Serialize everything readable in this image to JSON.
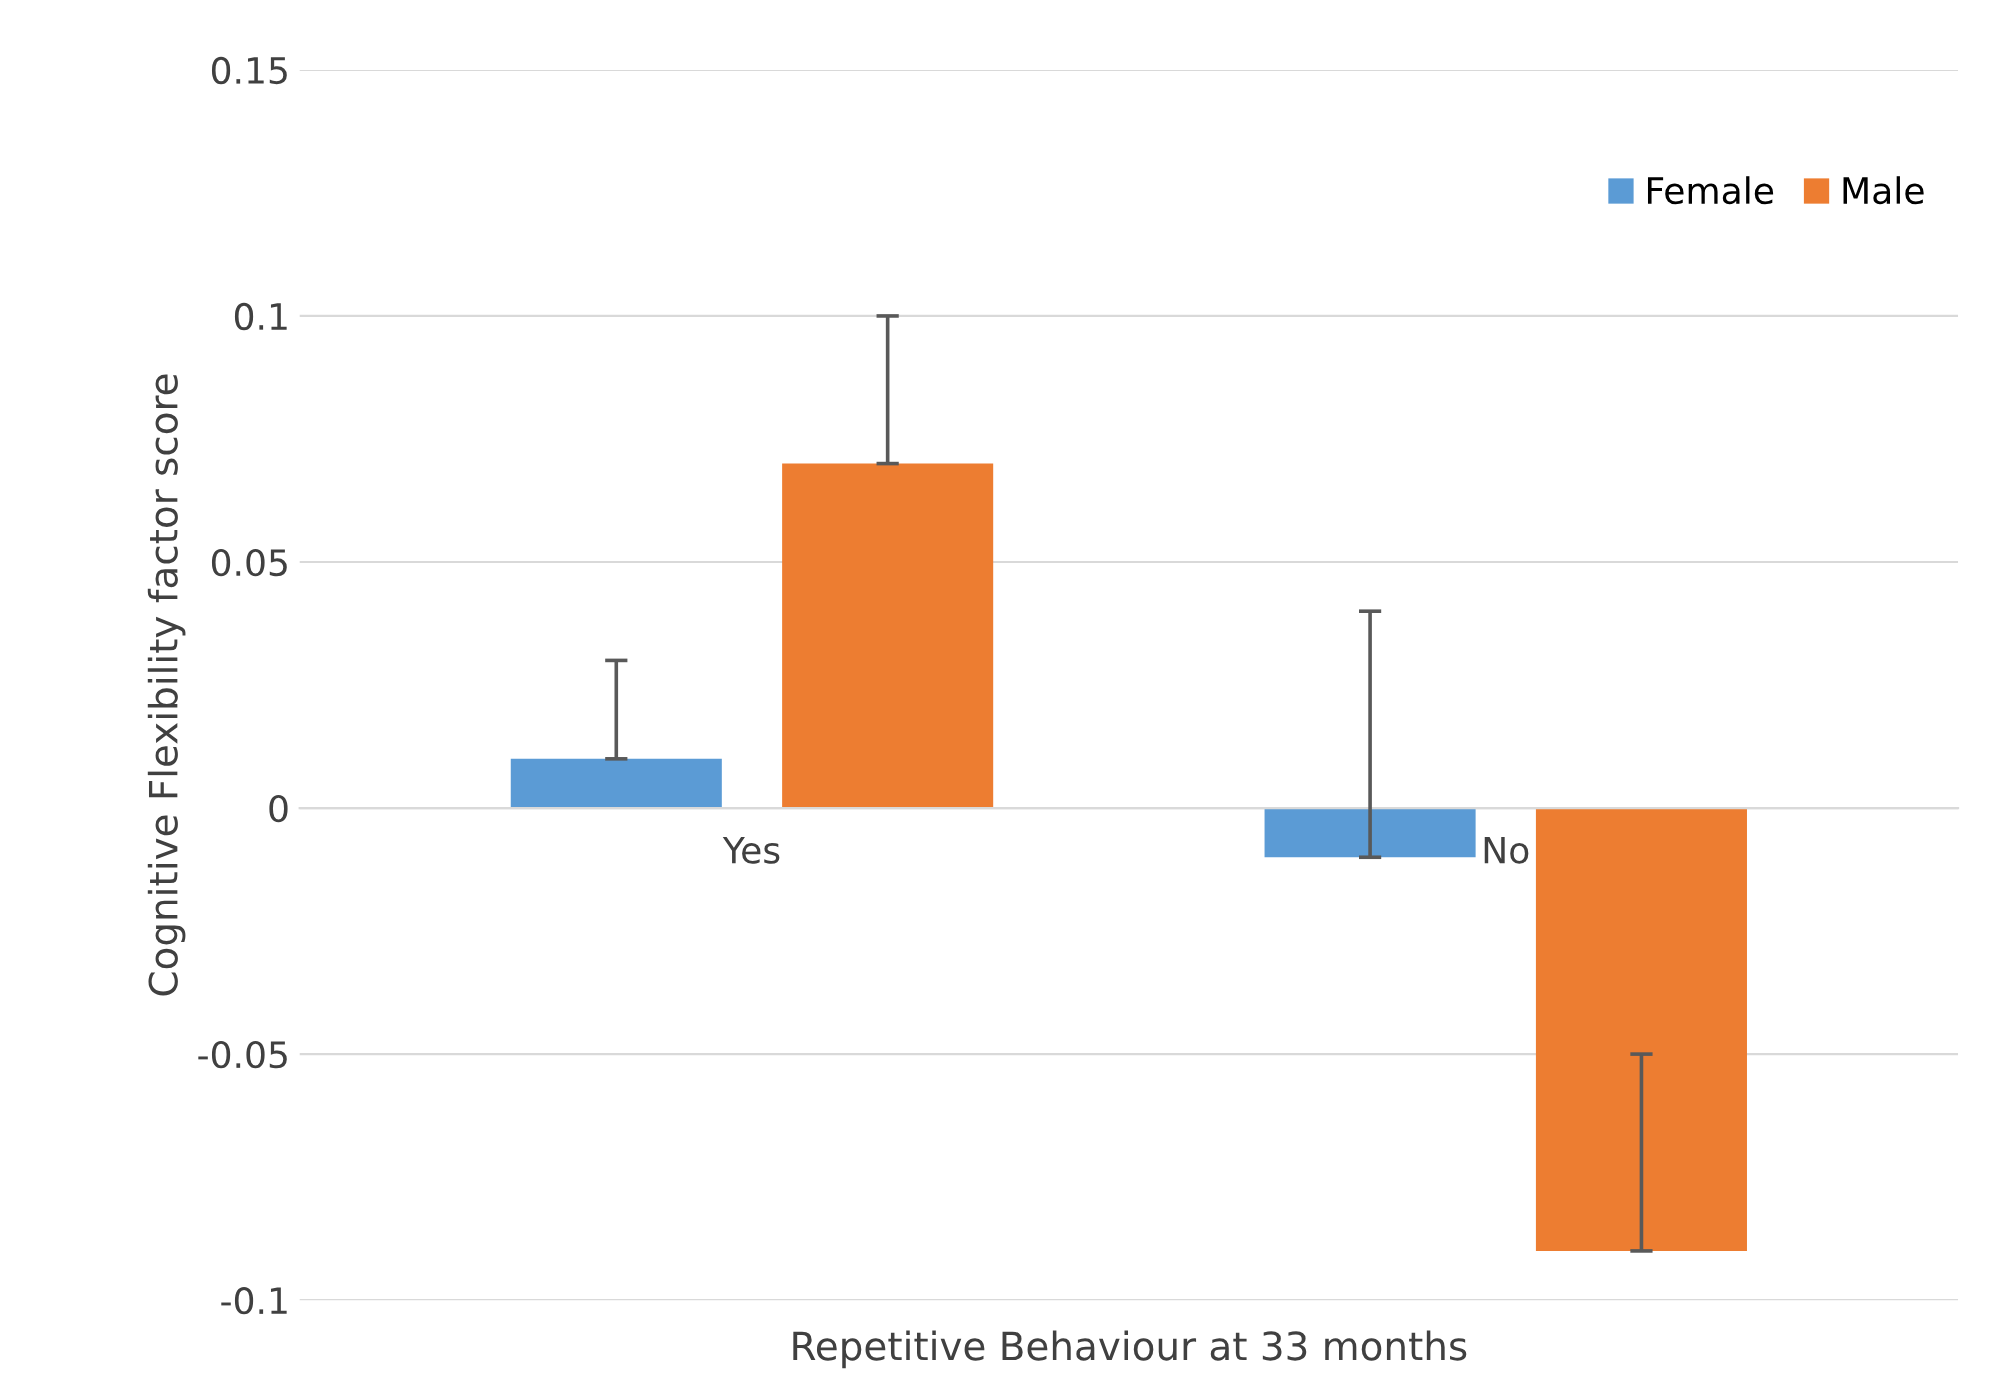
{
  "chart_data": {
    "type": "bar",
    "xlabel": "Repetitive Behaviour at 33 months",
    "ylabel": "Cognitive Flexibility factor score",
    "categories": [
      "Yes",
      "No"
    ],
    "series": [
      {
        "name": "Female",
        "color": "#5b9bd5",
        "values": [
          0.01,
          -0.01
        ],
        "errors": [
          [
            0.01,
            0.03
          ],
          [
            -0.01,
            0.04
          ]
        ]
      },
      {
        "name": "Male",
        "color": "#ed7d31",
        "values": [
          0.07,
          -0.09
        ],
        "errors": [
          [
            0.07,
            0.1
          ],
          [
            -0.09,
            -0.05
          ]
        ]
      }
    ],
    "ylim": [
      -0.1,
      0.15
    ],
    "yticks": [
      {
        "value": -0.1,
        "label": "-0.1"
      },
      {
        "value": -0.05,
        "label": "-0.05"
      },
      0,
      0.05,
      0.1,
      0.15
    ],
    "grid": "y",
    "legend": "top right"
  }
}
